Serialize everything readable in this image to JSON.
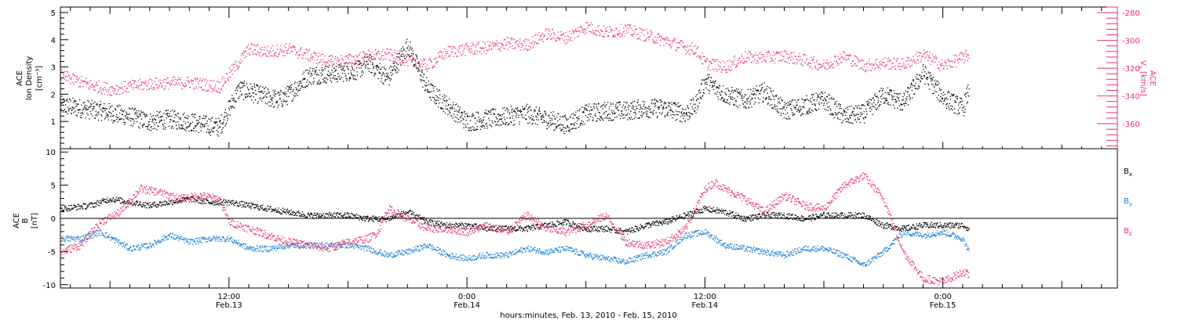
{
  "colors": {
    "black": "#000000",
    "pink": "#e8336b",
    "blue": "#1a7fd1"
  },
  "x_axis": {
    "label": "hours:minutes, Feb. 13, 2010 - Feb. 15, 2010",
    "tick_labels": [
      {
        "time": "12:00",
        "date": "Feb.13",
        "hour": 12
      },
      {
        "time": "0:00",
        "date": "Feb.14",
        "hour": 24
      },
      {
        "time": "12:00",
        "date": "Feb.14",
        "hour": 36
      },
      {
        "time": "0:00",
        "date": "Feb.15",
        "hour": 48
      }
    ]
  },
  "chart_data": [
    {
      "type": "scatter",
      "panel": "top",
      "x_range_hours": [
        3.5,
        56.8
      ],
      "left_axis": {
        "label_line1": "ACE",
        "label_line2": "Ion Density",
        "unit": "[cm⁻³]",
        "ylim": [
          0,
          5.2
        ],
        "ticks": [
          "1",
          "2",
          "3",
          "4",
          "5"
        ],
        "tick_values": [
          1,
          2,
          3,
          4,
          5
        ]
      },
      "right_axis": {
        "label_line1": "ACE",
        "label_line2": "V",
        "subscript": "x",
        "unit": "[km/s]",
        "ylim": [
          -378,
          -276
        ],
        "ticks": [
          "-280",
          "-300",
          "-320",
          "-340",
          "-360"
        ],
        "tick_values": [
          -280,
          -300,
          -320,
          -340,
          -360
        ]
      },
      "series": [
        {
          "axis": "left",
          "color": "#000000",
          "hours": [
            3.5,
            4.5,
            5.5,
            7,
            8,
            9,
            10,
            11.5,
            12.5,
            13.5,
            14.5,
            15,
            16,
            17.5,
            18.5,
            19,
            20,
            21,
            22,
            23,
            24,
            25,
            26,
            27,
            28,
            29,
            30,
            31,
            32,
            33,
            34,
            35,
            35.5,
            36,
            37,
            38,
            39,
            40,
            41,
            42,
            43,
            44,
            45,
            46,
            47,
            48,
            49,
            49.3
          ],
          "values": [
            1.6,
            1.5,
            1.4,
            1.2,
            1.0,
            1.1,
            1.0,
            0.8,
            2.2,
            2.0,
            1.8,
            2.0,
            2.7,
            2.8,
            2.9,
            3.2,
            2.6,
            3.8,
            2.2,
            1.6,
            1.0,
            1.1,
            1.2,
            1.3,
            1.1,
            0.9,
            1.3,
            1.4,
            1.4,
            1.5,
            1.5,
            1.3,
            1.6,
            2.5,
            2.0,
            1.8,
            2.1,
            1.4,
            1.6,
            1.8,
            1.2,
            1.3,
            2.0,
            1.7,
            2.8,
            1.9,
            1.5,
            2.2
          ]
        },
        {
          "axis": "right",
          "color": "#e8336b",
          "hours": [
            3.5,
            5,
            6,
            8,
            10,
            11.5,
            12,
            13,
            14,
            15,
            17,
            18,
            19,
            20,
            21,
            22,
            23,
            24,
            25,
            26,
            27,
            28,
            29,
            30,
            31,
            32,
            33,
            34,
            35,
            35.5,
            36,
            37,
            38,
            39,
            40,
            41,
            42,
            43,
            44,
            45,
            46,
            47,
            48,
            49,
            49.3
          ],
          "values": [
            -325,
            -332,
            -335,
            -331,
            -330,
            -333,
            -324,
            -306,
            -308,
            -306,
            -315,
            -314,
            -311,
            -310,
            -314,
            -318,
            -308,
            -306,
            -305,
            -302,
            -303,
            -295,
            -298,
            -290,
            -294,
            -292,
            -296,
            -300,
            -305,
            -306,
            -316,
            -319,
            -312,
            -312,
            -311,
            -314,
            -318,
            -311,
            -318,
            -316,
            -317,
            -310,
            -318,
            -312,
            -310
          ]
        }
      ]
    },
    {
      "type": "scatter",
      "panel": "bottom",
      "x_range_hours": [
        3.5,
        56.8
      ],
      "left_axis": {
        "label_line1": "ACE",
        "label_line2": "B",
        "unit": "[nT]",
        "ylim": [
          -10.5,
          10.5
        ],
        "ticks": [
          "10",
          "5",
          "0",
          "-5",
          "-10"
        ],
        "tick_values": [
          10,
          5,
          0,
          -5,
          -10
        ]
      },
      "zero_line": 0,
      "legend": [
        {
          "label": "B",
          "sub": "x",
          "color": "#000000"
        },
        {
          "label": "B",
          "sub": "y",
          "color": "#1a7fd1"
        },
        {
          "label": "B",
          "sub": "z",
          "color": "#e8336b"
        }
      ],
      "series": [
        {
          "name": "Bx",
          "color": "#000000",
          "hours": [
            3.5,
            5,
            6,
            7,
            8,
            9,
            10,
            11,
            12,
            13,
            14,
            15,
            16,
            17,
            18,
            19,
            20,
            21,
            22,
            23,
            24,
            25,
            26,
            27,
            28,
            29,
            30,
            31,
            32,
            33,
            34,
            35,
            36,
            37,
            38,
            39,
            40,
            41,
            42,
            43,
            44,
            45,
            46,
            47,
            48,
            49,
            49.3
          ],
          "values": [
            1.5,
            2.0,
            3.0,
            2.5,
            2.0,
            2.5,
            3.0,
            2.5,
            2.5,
            2.0,
            1.5,
            1.0,
            0.5,
            0.5,
            0.5,
            0.0,
            0.0,
            1.0,
            -0.5,
            -1.0,
            -1.0,
            -1.5,
            -1.5,
            -1.5,
            -1.0,
            -0.5,
            -1.5,
            -1.5,
            -2.0,
            -1.0,
            -0.5,
            0.5,
            1.5,
            1.0,
            0.0,
            0.5,
            0.5,
            0.0,
            0.5,
            0.5,
            0.5,
            -1.0,
            -1.5,
            -1.0,
            -1.0,
            -1.0,
            -1.5
          ]
        },
        {
          "name": "By",
          "color": "#1a7fd1",
          "hours": [
            3.5,
            4.5,
            5.5,
            7,
            8,
            9,
            10,
            11,
            12,
            13,
            14,
            15,
            16,
            17,
            18,
            19,
            20,
            21,
            22,
            23,
            24,
            25,
            26,
            27,
            28,
            29,
            30,
            31,
            32,
            33,
            34,
            35,
            36,
            37,
            38,
            39,
            40,
            41,
            42,
            43,
            44,
            45,
            46,
            47,
            48,
            49,
            49.3
          ],
          "values": [
            -3.0,
            -3.0,
            -2.0,
            -4.5,
            -4.0,
            -2.5,
            -3.5,
            -3.0,
            -3.0,
            -4.5,
            -4.5,
            -4.0,
            -4.0,
            -4.0,
            -4.0,
            -4.5,
            -5.5,
            -5.0,
            -4.0,
            -5.5,
            -6.0,
            -5.5,
            -5.5,
            -4.5,
            -5.0,
            -4.5,
            -5.5,
            -6.0,
            -6.5,
            -5.5,
            -5.0,
            -2.5,
            -2.0,
            -4.0,
            -4.5,
            -5.0,
            -5.5,
            -4.5,
            -4.5,
            -5.5,
            -7.0,
            -5.0,
            -2.0,
            -2.5,
            -2.0,
            -3.0,
            -5.0
          ]
        },
        {
          "name": "Bz",
          "color": "#e8336b",
          "hours": [
            3.5,
            4.5,
            5.5,
            6.5,
            7.5,
            8.5,
            9.5,
            10.5,
            11.5,
            12,
            13,
            14,
            15,
            16,
            17,
            18,
            19,
            19.5,
            20,
            21,
            22,
            23,
            24,
            25,
            26,
            27,
            28,
            29,
            30,
            31,
            32,
            33,
            34,
            35,
            36,
            36.5,
            37,
            38,
            39,
            40,
            41,
            42,
            43,
            44,
            45,
            46,
            47,
            48,
            49,
            49.3
          ],
          "values": [
            -5.0,
            -4.0,
            -0.5,
            1.0,
            4.5,
            4.0,
            3.0,
            3.5,
            3.0,
            -0.5,
            -1.5,
            -2.5,
            -3.5,
            -4.0,
            -4.5,
            -3.5,
            -3.0,
            -2.0,
            1.5,
            0.0,
            -1.5,
            -1.5,
            -2.0,
            -1.0,
            -2.0,
            0.5,
            -1.5,
            -2.0,
            -1.0,
            0.5,
            -3.5,
            -4.0,
            -3.5,
            -1.5,
            4.5,
            5.5,
            4.5,
            3.0,
            1.0,
            3.5,
            2.0,
            1.5,
            5.0,
            6.5,
            3.0,
            -5.0,
            -9.0,
            -9.5,
            -8.0,
            -8.5
          ]
        }
      ]
    }
  ]
}
